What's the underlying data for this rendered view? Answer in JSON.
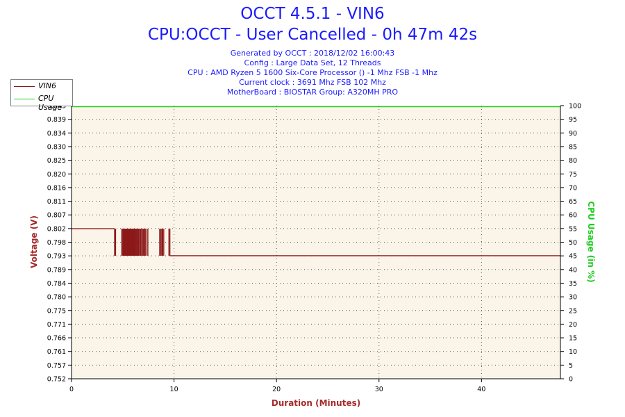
{
  "header": {
    "title": "OCCT 4.5.1 - VIN6",
    "subtitle": "CPU:OCCT - User Cancelled - 0h 47m 42s",
    "info_lines": [
      "Generated by OCCT : 2018/12/02 16:00:43",
      "Config : Large Data Set, 12 Threads",
      "CPU : AMD Ryzen 5 1600 Six-Core Processor () -1 Mhz FSB -1 Mhz",
      "Current clock : 3691 Mhz FSB 102 Mhz",
      "MotherBoard : BIOSTAR Group: A320MH PRO"
    ]
  },
  "legend": {
    "items": [
      {
        "label": "VIN6",
        "color": "#8b1a1a"
      },
      {
        "label": "CPU Usage",
        "color": "#22cc22"
      }
    ]
  },
  "colors": {
    "plot_bg": "#fbf5e9",
    "vin6": "#8b1a1a",
    "cpu": "#22cc22",
    "title": "#1a1aff",
    "axis_left": "#a52a2a",
    "axis_right": "#22cc22"
  },
  "chart_data": {
    "type": "line",
    "xlabel": "Duration (Minutes)",
    "ylabel": "Voltage (V)",
    "y2label": "CPU Usage (in %)",
    "xlim": [
      0,
      47.7
    ],
    "ylim": [
      0.752,
      0.843
    ],
    "y2lim": [
      0,
      100
    ],
    "x_ticks": [
      "0",
      "10",
      "20",
      "30",
      "40"
    ],
    "y_ticks": [
      "0.843",
      "0.839",
      "0.834",
      "0.830",
      "0.825",
      "0.820",
      "0.816",
      "0.811",
      "0.807",
      "0.802",
      "0.798",
      "0.793",
      "0.789",
      "0.784",
      "0.780",
      "0.775",
      "0.771",
      "0.766",
      "0.761",
      "0.757",
      "0.752"
    ],
    "y2_ticks": [
      "100",
      "95",
      "90",
      "85",
      "80",
      "75",
      "70",
      "65",
      "60",
      "55",
      "50",
      "45",
      "40",
      "35",
      "30",
      "25",
      "20",
      "15",
      "10",
      "5",
      "0"
    ],
    "grid": true,
    "legend_position": "top-left",
    "series": [
      {
        "name": "VIN6",
        "axis": "left",
        "high_value": 0.802,
        "low_value": 0.793,
        "segments": [
          {
            "x_start": 0,
            "x_end": 4.2,
            "value": 0.802
          },
          {
            "x_start": 9.6,
            "x_end": 47.7,
            "value": 0.793
          }
        ],
        "toggle_region": [
          4.2,
          9.6
        ],
        "toggle_x": [
          4.2,
          4.25,
          4.3,
          4.9,
          4.95,
          5.05,
          5.1,
          5.15,
          5.2,
          5.25,
          5.3,
          5.35,
          5.4,
          5.45,
          5.5,
          5.55,
          5.6,
          5.65,
          5.7,
          5.75,
          5.8,
          5.85,
          5.9,
          5.95,
          6.0,
          6.05,
          6.1,
          6.15,
          6.2,
          6.25,
          6.35,
          6.4,
          6.5,
          6.55,
          6.65,
          6.75,
          6.85,
          6.9,
          7.0,
          7.1,
          7.15,
          7.2,
          7.35,
          7.45,
          8.6,
          8.65,
          8.75,
          8.85,
          8.9,
          9.0,
          9.5,
          9.6
        ]
      },
      {
        "name": "CPU Usage",
        "axis": "right",
        "x": [
          0,
          47.7
        ],
        "values": [
          100,
          100
        ]
      }
    ]
  }
}
